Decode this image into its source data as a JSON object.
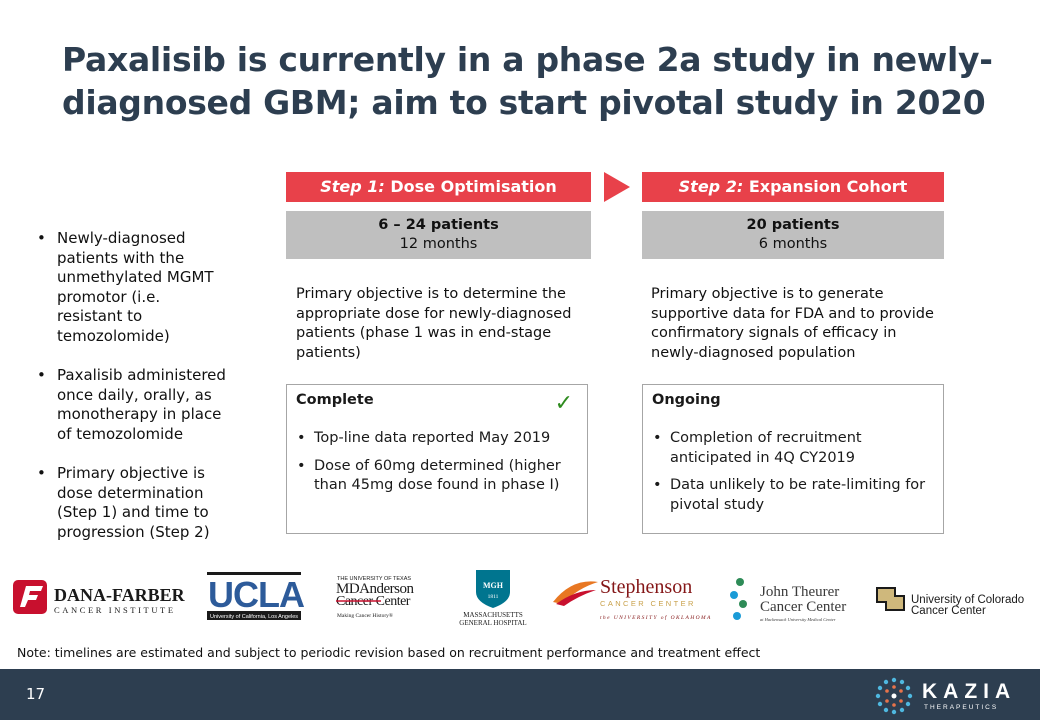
{
  "slide": {
    "title": "Paxalisib is currently in a phase 2a study in newly-diagnosed GBM; aim to start pivotal study in 2020",
    "bullets": [
      "Newly-diagnosed patients with the unmethylated MGMT promotor (i.e. resistant to temozolomide)",
      "Paxalisib administered once daily, orally, as monotherapy in place of temozolomide",
      "Primary objective is dose determination (Step 1) and time to progression (Step 2)"
    ],
    "step1": {
      "label": "Step 1:",
      "name": "Dose Optimisation",
      "patients": "6 – 24 patients",
      "duration": "12 months",
      "objective": "Primary objective is to determine the appropriate dose for newly-diagnosed patients (phase 1 was in end-stage patients)",
      "status_title": "Complete",
      "status_items": [
        "Top-line data reported May 2019",
        "Dose of 60mg determined (higher than 45mg dose found in phase I)"
      ]
    },
    "step2": {
      "label": "Step 2:",
      "name": "Expansion Cohort",
      "patients": "20 patients",
      "duration": "6 months",
      "objective": "Primary objective is to generate supportive data for FDA and to provide confirmatory signals of efficacy in newly-diagnosed population",
      "status_title": "Ongoing",
      "status_items": [
        "Completion of recruitment anticipated in 4Q CY2019",
        "Data unlikely to be rate-limiting for pivotal study"
      ]
    },
    "check_icon": "checkmark-icon",
    "logos": {
      "dana_farber": {
        "name": "DANA-FARBER",
        "sub": "CANCER INSTITUTE",
        "color": "#c8102e"
      },
      "ucla": {
        "name": "UCLA",
        "sub": "University of California, Los Angeles",
        "color": "#2d5b9a"
      },
      "md_anderson": {
        "top": "THE UNIVERSITY OF TEXAS",
        "line1": "MDAnderson",
        "line2": "Cancer Center",
        "tagline": "Making Cancer History®",
        "color": "#c8102e"
      },
      "mgh": {
        "badge": "MGH",
        "year": "1811",
        "line1": "MASSACHUSETTS",
        "line2": "GENERAL HOSPITAL",
        "color": "#00758f"
      },
      "stephenson": {
        "name": "Stephenson",
        "sub": "CANCER CENTER",
        "tagline": "the UNIVERSITY of OKLAHOMA",
        "color": "#841617"
      },
      "john_theurer": {
        "line1": "John Theurer",
        "line2": "Cancer Center",
        "tagline": "at Hackensack University Medical Center",
        "color": "#3a3a3a"
      },
      "colorado": {
        "line1": "University of Colorado",
        "line2": "Cancer Center",
        "color": "#cfb87c"
      }
    },
    "note": "Note: timelines are estimated and subject to periodic revision based on recruitment performance and treatment effect",
    "page_number": "17",
    "brand": {
      "name": "KAZIA",
      "sub": "THERAPEUTICS"
    },
    "colors": {
      "title": "#2d3e50",
      "accent": "#e8414a",
      "gray_box": "#bfbfbf",
      "footer": "#2d3e50"
    }
  }
}
